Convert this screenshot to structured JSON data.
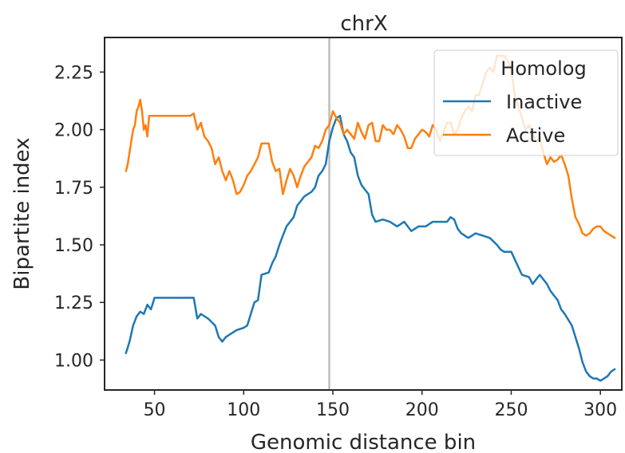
{
  "chart_data": {
    "type": "line",
    "title": "chrX",
    "xlabel": "Genomic distance bin",
    "ylabel": "Bipartite index",
    "xlim": [
      22,
      312
    ],
    "ylim": [
      0.87,
      2.4
    ],
    "xticks": [
      50,
      100,
      150,
      200,
      250,
      300
    ],
    "yticks": [
      1.0,
      1.25,
      1.5,
      1.75,
      2.0,
      2.25
    ],
    "xtick_labels": [
      "50",
      "100",
      "150",
      "200",
      "250",
      "300"
    ],
    "ytick_labels": [
      "1.00",
      "1.25",
      "1.50",
      "1.75",
      "2.00",
      "2.25"
    ],
    "vline_x": 148,
    "grid": false,
    "legend": {
      "title": "Homolog",
      "placement": "top-right",
      "entries": [
        "Inactive",
        "Active"
      ]
    },
    "colors": {
      "Inactive": "#1f77b4",
      "Active": "#ff7f0e",
      "vline": "#bdbdbd",
      "axes": "#262626"
    },
    "series": [
      {
        "name": "Inactive",
        "x": [
          34,
          36,
          38,
          40,
          42,
          44,
          46,
          48,
          50,
          52,
          60,
          70,
          72,
          74,
          76,
          80,
          84,
          86,
          88,
          90,
          92,
          96,
          100,
          102,
          104,
          106,
          108,
          110,
          114,
          116,
          118,
          120,
          122,
          124,
          126,
          128,
          130,
          132,
          134,
          136,
          138,
          140,
          142,
          144,
          146,
          148,
          150,
          152,
          154,
          156,
          158,
          160,
          162,
          164,
          166,
          168,
          170,
          172,
          174,
          178,
          182,
          186,
          190,
          194,
          198,
          202,
          206,
          210,
          214,
          216,
          218,
          220,
          222,
          226,
          230,
          234,
          238,
          242,
          244,
          246,
          248,
          250,
          256,
          260,
          262,
          264,
          266,
          268,
          270,
          272,
          274,
          276,
          278,
          280,
          284,
          286,
          288,
          290,
          292,
          294,
          296,
          298,
          300,
          302,
          304,
          306,
          308
        ],
        "values": [
          1.03,
          1.08,
          1.15,
          1.19,
          1.21,
          1.2,
          1.24,
          1.22,
          1.27,
          1.27,
          1.27,
          1.27,
          1.27,
          1.18,
          1.2,
          1.18,
          1.15,
          1.1,
          1.08,
          1.1,
          1.11,
          1.13,
          1.14,
          1.15,
          1.2,
          1.25,
          1.26,
          1.37,
          1.38,
          1.42,
          1.45,
          1.5,
          1.54,
          1.58,
          1.6,
          1.62,
          1.67,
          1.69,
          1.71,
          1.72,
          1.73,
          1.75,
          1.8,
          1.82,
          1.85,
          1.95,
          2.01,
          2.05,
          2.06,
          1.98,
          1.95,
          1.9,
          1.88,
          1.8,
          1.76,
          1.74,
          1.72,
          1.63,
          1.6,
          1.61,
          1.6,
          1.58,
          1.6,
          1.56,
          1.58,
          1.58,
          1.6,
          1.6,
          1.6,
          1.62,
          1.61,
          1.57,
          1.55,
          1.53,
          1.55,
          1.54,
          1.53,
          1.5,
          1.48,
          1.47,
          1.47,
          1.47,
          1.37,
          1.36,
          1.33,
          1.35,
          1.37,
          1.35,
          1.33,
          1.3,
          1.28,
          1.26,
          1.22,
          1.2,
          1.15,
          1.1,
          1.05,
          0.99,
          0.95,
          0.93,
          0.92,
          0.92,
          0.91,
          0.92,
          0.93,
          0.95,
          0.96
        ]
      },
      {
        "name": "Active",
        "x": [
          34,
          35,
          37,
          38,
          39,
          40,
          41,
          42,
          43,
          44,
          45,
          46,
          47,
          48,
          50,
          55,
          60,
          65,
          70,
          72,
          74,
          76,
          78,
          80,
          82,
          84,
          86,
          88,
          90,
          92,
          94,
          96,
          98,
          100,
          102,
          104,
          106,
          108,
          110,
          112,
          114,
          116,
          118,
          120,
          122,
          124,
          126,
          128,
          130,
          132,
          134,
          136,
          138,
          140,
          142,
          144,
          146,
          148,
          150,
          152,
          154,
          156,
          158,
          160,
          162,
          164,
          166,
          168,
          170,
          172,
          174,
          176,
          178,
          180,
          182,
          184,
          186,
          188,
          190,
          192,
          194,
          196,
          198,
          200,
          202,
          204,
          206,
          208,
          210,
          212,
          214,
          216,
          218,
          220,
          222,
          224,
          226,
          228,
          230,
          232,
          234,
          236,
          238,
          240,
          242,
          244,
          246,
          248,
          250,
          252,
          254,
          256,
          258,
          260,
          262,
          264,
          266,
          268,
          270,
          272,
          274,
          276,
          278,
          280,
          282,
          284,
          286,
          288,
          290,
          292,
          294,
          296,
          298,
          300,
          302,
          304,
          306,
          308
        ],
        "values": [
          1.82,
          1.85,
          1.95,
          2.0,
          2.02,
          2.08,
          2.1,
          2.13,
          2.08,
          2.0,
          2.02,
          1.97,
          2.06,
          2.06,
          2.06,
          2.06,
          2.06,
          2.06,
          2.06,
          2.07,
          2.0,
          2.03,
          1.97,
          1.95,
          1.92,
          1.85,
          1.88,
          1.82,
          1.78,
          1.82,
          1.78,
          1.72,
          1.73,
          1.76,
          1.8,
          1.82,
          1.85,
          1.88,
          1.94,
          1.94,
          1.94,
          1.86,
          1.82,
          1.83,
          1.72,
          1.78,
          1.83,
          1.8,
          1.75,
          1.8,
          1.84,
          1.86,
          1.88,
          1.93,
          1.92,
          1.95,
          2.0,
          2.02,
          2.08,
          2.05,
          2.03,
          1.98,
          2.0,
          1.98,
          1.96,
          2.03,
          1.99,
          1.96,
          2.02,
          2.03,
          1.95,
          1.95,
          2.02,
          2.0,
          2.0,
          1.98,
          2.02,
          2.0,
          1.97,
          1.92,
          1.92,
          1.96,
          1.98,
          2.0,
          1.99,
          1.97,
          2.02,
          2.0,
          1.95,
          1.99,
          2.03,
          2.03,
          1.98,
          2.0,
          2.05,
          2.08,
          2.1,
          2.08,
          2.15,
          2.15,
          2.2,
          2.25,
          2.27,
          2.25,
          2.32,
          2.32,
          2.32,
          2.3,
          2.26,
          2.15,
          2.1,
          2.05,
          2.0,
          2.02,
          1.98,
          1.95,
          1.96,
          1.9,
          1.85,
          1.88,
          1.86,
          1.87,
          1.89,
          1.85,
          1.8,
          1.7,
          1.62,
          1.59,
          1.55,
          1.54,
          1.55,
          1.57,
          1.58,
          1.58,
          1.56,
          1.55,
          1.54,
          1.53
        ]
      }
    ]
  }
}
